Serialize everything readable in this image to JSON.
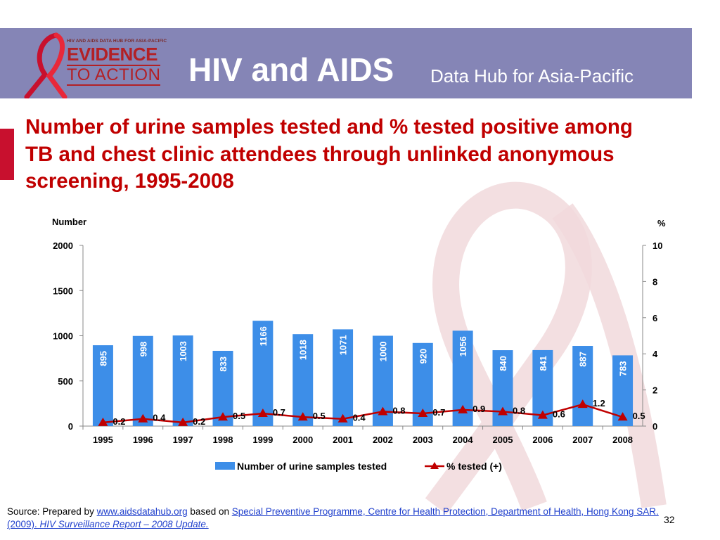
{
  "header": {
    "title": "HIV and AIDS",
    "subtitle": "Data Hub for Asia-Pacific",
    "logo_small": "HIV AND AIDS DATA HUB FOR ASIA-PACIFIC",
    "logo_line1": "EVIDENCE",
    "logo_line2": "TO ACTION"
  },
  "slide": {
    "title": "Number of urine samples tested and % tested positive among TB and chest clinic attendees through unlinked anonymous screening, 1995-2008",
    "page_number": "32"
  },
  "source": {
    "prefix": "Source: Prepared by ",
    "link1": "www.aidsdatahub.org",
    "middle": "  based on ",
    "link2": "Special Preventive Programme, Centre for Health Protection, Department of Health, Hong Kong SAR. (2009). ",
    "link2_italic": "HIV Surveillance Report – 2008 Update."
  },
  "colors": {
    "header_band": "#8585b6",
    "title_red": "#c00000",
    "bar_blue": "#3d8ee8",
    "line_red": "#c00000"
  },
  "chart_data": {
    "type": "bar",
    "categories": [
      "1995",
      "1996",
      "1997",
      "1998",
      "1999",
      "2000",
      "2001",
      "2002",
      "2003",
      "2004",
      "2005",
      "2006",
      "2007",
      "2008"
    ],
    "series": [
      {
        "name": "Number of urine samples tested",
        "type": "bar",
        "axis": "left",
        "values": [
          895,
          998,
          1003,
          833,
          1166,
          1018,
          1071,
          1000,
          920,
          1056,
          840,
          841,
          887,
          783
        ],
        "labels": [
          "895",
          "998",
          "1003",
          "833",
          "1166",
          "1018",
          "1071",
          "1000",
          "920",
          "1056",
          "840",
          "841",
          "887",
          "783"
        ]
      },
      {
        "name": "% tested (+)",
        "type": "line",
        "axis": "right",
        "values": [
          0.2,
          0.4,
          0.2,
          0.5,
          0.7,
          0.5,
          0.4,
          0.8,
          0.7,
          0.9,
          0.8,
          0.6,
          1.2,
          0.5
        ],
        "labels": [
          "0.2",
          "0.4",
          "0.2",
          "0.5",
          "0.7",
          "0.5",
          "0.4",
          "0.8",
          "0.7",
          "0.9",
          "0.8",
          "0.6",
          "1.2",
          "0.5"
        ]
      }
    ],
    "ylabel": "Number",
    "y2label": "%",
    "ylim": [
      0,
      2000
    ],
    "y2lim": [
      0,
      10
    ],
    "yticks": [
      "0",
      "500",
      "1000",
      "1500",
      "2000"
    ],
    "y2ticks": [
      "0",
      "2",
      "4",
      "6",
      "8",
      "10"
    ],
    "grid": false,
    "legend_position": "bottom"
  }
}
